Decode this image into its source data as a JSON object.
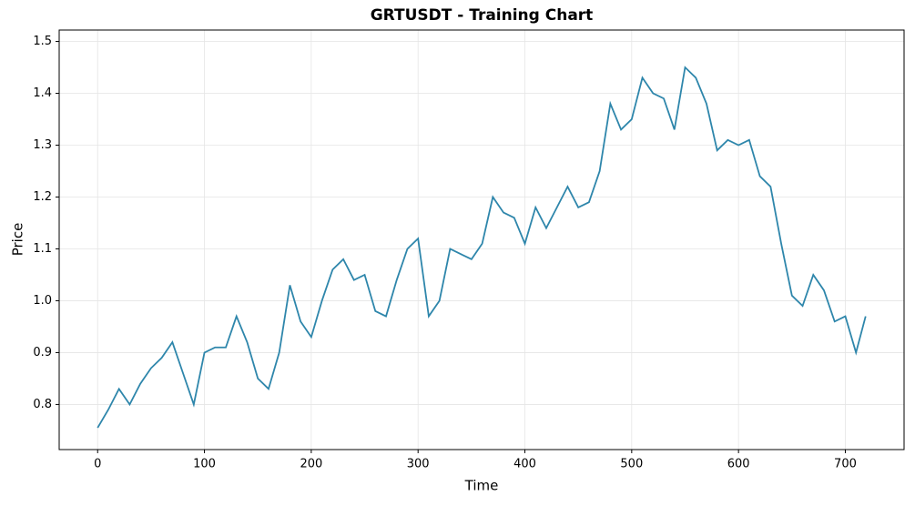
{
  "chart_data": {
    "type": "line",
    "title": "GRTUSDT - Training Chart",
    "x_label": "Time",
    "y_label": "Price",
    "x": [
      0,
      10,
      20,
      30,
      40,
      50,
      60,
      70,
      80,
      90,
      100,
      110,
      120,
      130,
      140,
      150,
      160,
      170,
      180,
      190,
      200,
      210,
      220,
      230,
      240,
      250,
      260,
      270,
      280,
      290,
      300,
      310,
      320,
      330,
      340,
      350,
      360,
      370,
      380,
      390,
      400,
      410,
      420,
      430,
      440,
      450,
      460,
      470,
      480,
      490,
      500,
      510,
      520,
      530,
      540,
      550,
      560,
      570,
      580,
      590,
      600,
      610,
      620,
      630,
      640,
      650,
      660,
      670,
      680,
      690,
      700,
      710,
      719
    ],
    "series": [
      {
        "name": "GRTUSDT",
        "color": "#2e86ab",
        "values": [
          0.755,
          0.79,
          0.83,
          0.8,
          0.84,
          0.87,
          0.89,
          0.92,
          0.86,
          0.8,
          0.9,
          0.91,
          0.91,
          0.97,
          0.92,
          0.85,
          0.83,
          0.9,
          1.03,
          0.96,
          0.93,
          1.0,
          1.06,
          1.08,
          1.04,
          1.05,
          0.98,
          0.97,
          1.04,
          1.1,
          1.12,
          0.97,
          1.0,
          1.1,
          1.09,
          1.08,
          1.11,
          1.2,
          1.17,
          1.16,
          1.11,
          1.18,
          1.14,
          1.18,
          1.22,
          1.18,
          1.19,
          1.25,
          1.38,
          1.33,
          1.35,
          1.43,
          1.4,
          1.39,
          1.33,
          1.45,
          1.43,
          1.38,
          1.29,
          1.31,
          1.3,
          1.31,
          1.24,
          1.22,
          1.11,
          1.01,
          0.99,
          1.05,
          1.02,
          0.96,
          0.97,
          0.9,
          0.97
        ]
      }
    ],
    "xlim": [
      -36,
      755
    ],
    "xticks": [
      0,
      100,
      200,
      300,
      400,
      500,
      600,
      700
    ],
    "ylim": [
      0.713,
      1.522
    ],
    "yticks": [
      0.8,
      0.9,
      {
        "value": 1,
        "label": "1.0"
      },
      1.1,
      1.2,
      1.3,
      1.4,
      1.5
    ],
    "grid": true
  }
}
